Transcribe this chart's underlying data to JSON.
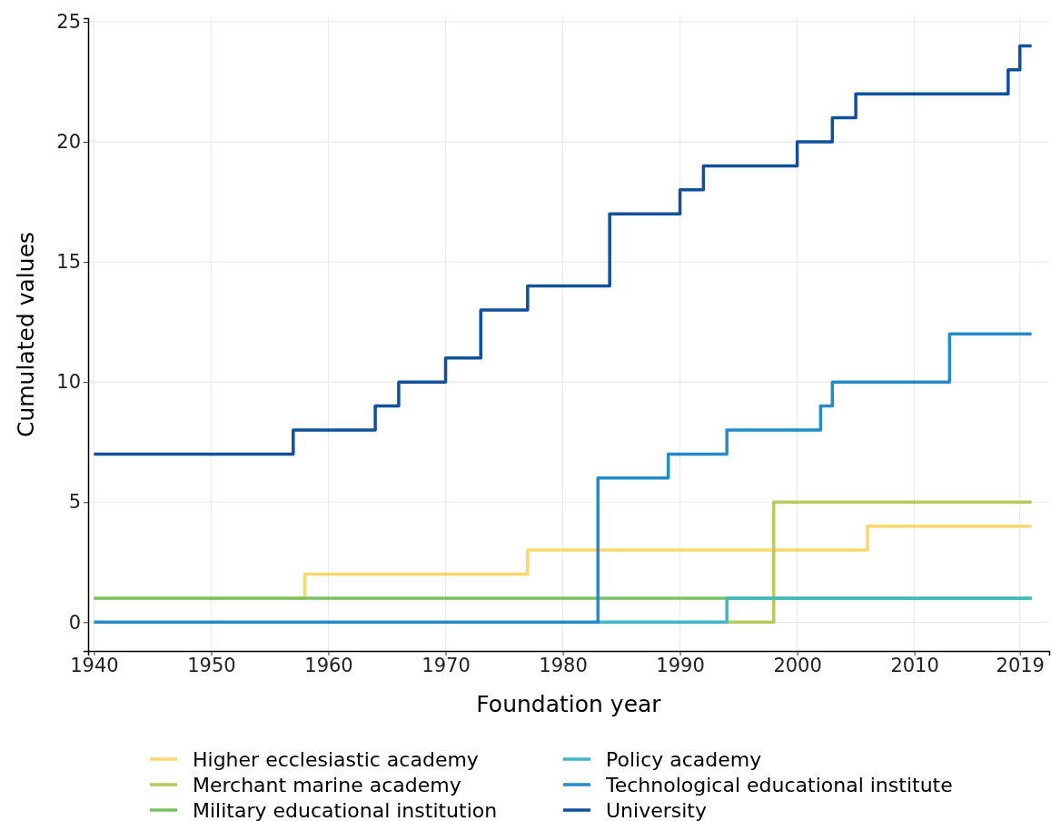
{
  "chart_data": {
    "type": "step",
    "xlabel": "Foundation year",
    "ylabel": "Cumulated values",
    "xlim": [
      1939.5,
      2021.5
    ],
    "ylim": [
      -1.2,
      25.15
    ],
    "xticks": [
      1940,
      1950,
      1960,
      1970,
      1980,
      1990,
      2000,
      2010,
      2019
    ],
    "yticks": [
      0,
      5,
      10,
      15,
      20,
      25
    ],
    "grid": true,
    "legend": "bottom",
    "line_style": "solid",
    "marker": "none",
    "series": [
      {
        "name": "Higher ecclesiastic academy",
        "color": "#fdd76e",
        "x": [
          1940,
          1958,
          1977,
          2006,
          2020
        ],
        "values": [
          1,
          2,
          3,
          4,
          4
        ]
      },
      {
        "name": "Merchant marine academy",
        "color": "#b5cc5a",
        "x": [
          1994,
          1998,
          2020
        ],
        "values": [
          0,
          5,
          5
        ]
      },
      {
        "name": "Military educational institution",
        "color": "#77c264",
        "x": [
          1940,
          2020
        ],
        "values": [
          1,
          1
        ]
      },
      {
        "name": "Policy academy",
        "color": "#41b6c4",
        "x": [
          1983,
          1994,
          2020
        ],
        "values": [
          0,
          1,
          1
        ]
      },
      {
        "name": "Technological educational institute",
        "color": "#238bc7",
        "x": [
          1940,
          1983,
          1989,
          1994,
          2002,
          2003,
          2013,
          2020
        ],
        "values": [
          0,
          6,
          7,
          8,
          9,
          10,
          12,
          12
        ]
      },
      {
        "name": "University",
        "color": "#11509a",
        "x": [
          1940,
          1957,
          1964,
          1966,
          1970,
          1973,
          1977,
          1984,
          1990,
          1992,
          2000,
          2003,
          2005,
          2018,
          2019,
          2020
        ],
        "values": [
          7,
          8,
          9,
          10,
          11,
          13,
          14,
          17,
          18,
          19,
          20,
          21,
          22,
          23,
          24,
          24
        ]
      }
    ]
  }
}
